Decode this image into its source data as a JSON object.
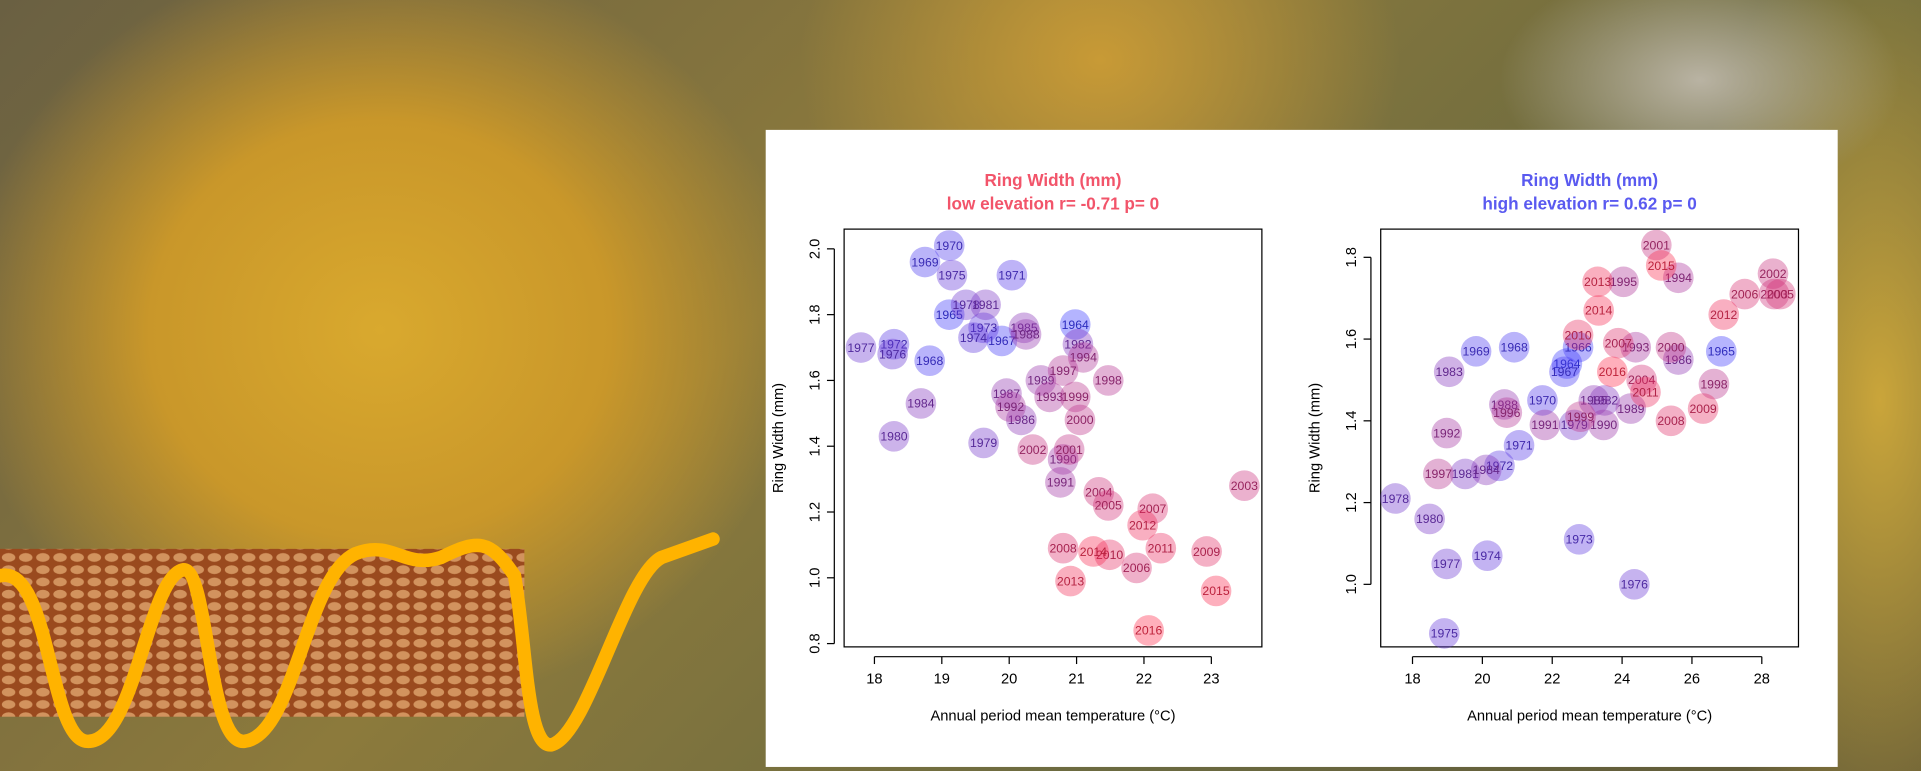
{
  "chart_data": [
    {
      "type": "scatter",
      "title": "Ring Width (mm)",
      "subtitle": "low elevation r= -0.71 p= 0",
      "title_color": "#f2546a",
      "xlabel": "Annual period mean temperature (°C)",
      "ylabel": "Ring Width (mm)",
      "xlim": [
        17.55,
        23.75
      ],
      "ylim": [
        0.79,
        2.06
      ],
      "xticks": [
        18,
        19,
        20,
        21,
        22,
        23
      ],
      "yticks": [
        0.8,
        {
          "value": 1,
          "label": "1.0"
        },
        1.2,
        1.4,
        1.6,
        1.8,
        {
          "value": 2,
          "label": "2.0"
        }
      ],
      "colors": [
        "#3a3aff",
        "#ff2d4d"
      ],
      "labels": [
        "1964",
        "1965",
        "1967",
        "1968",
        "1969",
        "1970",
        "1971",
        "1972",
        "1973",
        "1974",
        "1975",
        "1976",
        "1977",
        "1978",
        "1979",
        "1980",
        "1981",
        "1982",
        "1984",
        "1985",
        "1986",
        "1987",
        "1988",
        "1989",
        "1990",
        "1991",
        "1992",
        "1993",
        "1994",
        "1997",
        "1998",
        "1999",
        "2000",
        "2001",
        "2002",
        "2003",
        "2004",
        "2005",
        "2006",
        "2007",
        "2008",
        "2009",
        "2010",
        "2011",
        "2012",
        "2013",
        "2014",
        "2015",
        "2016"
      ],
      "x": [
        20.98,
        19.11,
        19.89,
        18.82,
        18.75,
        19.11,
        20.04,
        18.29,
        19.62,
        19.47,
        19.15,
        18.27,
        17.8,
        19.36,
        19.62,
        18.29,
        19.65,
        21.02,
        18.69,
        20.22,
        20.18,
        19.96,
        20.25,
        20.47,
        20.8,
        20.76,
        20.02,
        20.6,
        21.1,
        20.8,
        21.47,
        20.98,
        21.05,
        20.89,
        20.35,
        23.49,
        21.33,
        21.47,
        21.89,
        22.13,
        20.8,
        22.93,
        21.49,
        22.25,
        21.98,
        20.91,
        21.25,
        23.07,
        22.07
      ],
      "values": [
        1.77,
        1.8,
        1.72,
        1.66,
        1.96,
        2.01,
        1.92,
        1.71,
        1.76,
        1.73,
        1.92,
        1.68,
        1.7,
        1.83,
        1.41,
        1.43,
        1.83,
        1.71,
        1.53,
        1.76,
        1.48,
        1.56,
        1.74,
        1.6,
        1.36,
        1.29,
        1.52,
        1.55,
        1.67,
        1.63,
        1.6,
        1.55,
        1.48,
        1.39,
        1.39,
        1.28,
        1.26,
        1.22,
        1.03,
        1.21,
        1.09,
        1.08,
        1.07,
        1.09,
        1.16,
        0.99,
        1.08,
        0.96,
        0.84
      ]
    },
    {
      "type": "scatter",
      "title": "Ring Width (mm)",
      "subtitle": "high elevation r= 0.62 p= 0",
      "title_color": "#5a5af0",
      "xlabel": "Annual period mean temperature (°C)",
      "ylabel": "Ring Width (mm)",
      "xlim": [
        17.09,
        29.05
      ],
      "ylim": [
        0.847,
        1.869
      ],
      "xticks": [
        18,
        20,
        22,
        24,
        26,
        28
      ],
      "yticks": [
        {
          "value": 1,
          "label": "1.0"
        },
        1.2,
        1.4,
        1.6,
        1.8
      ],
      "colors": [
        "#3a3aff",
        "#ff2d4d"
      ],
      "labels": [
        "1964",
        "1965",
        "1966",
        "1967",
        "1968",
        "1969",
        "1970",
        "1971",
        "1972",
        "1973",
        "1974",
        "1975",
        "1976",
        "1977",
        "1978",
        "1979",
        "1980",
        "1981",
        "1982",
        "1983",
        "1984",
        "1985",
        "1986",
        "1988",
        "1989",
        "1990",
        "1991",
        "1992",
        "1993",
        "1994",
        "1995",
        "1996",
        "1997",
        "1998",
        "1999",
        "2000",
        "2001",
        "2002",
        "2003",
        "2004",
        "2005",
        "2006",
        "2007",
        "2008",
        "2009",
        "2010",
        "2011",
        "2012",
        "2013",
        "2014",
        "2015",
        "2016"
      ],
      "x": [
        22.42,
        26.84,
        22.74,
        22.35,
        20.91,
        19.82,
        21.72,
        21.05,
        20.49,
        22.77,
        20.14,
        18.91,
        24.35,
        18.98,
        17.51,
        22.63,
        18.49,
        19.51,
        23.5,
        19.05,
        20.11,
        23.19,
        25.61,
        20.63,
        24.25,
        23.47,
        21.79,
        18.98,
        24.39,
        25.61,
        24.04,
        20.7,
        18.74,
        26.63,
        22.81,
        25.4,
        24.98,
        28.32,
        28.35,
        24.56,
        28.53,
        27.51,
        23.89,
        25.4,
        26.32,
        22.74,
        24.67,
        26.91,
        23.3,
        23.33,
        25.12,
        23.72
      ],
      "values": [
        1.54,
        1.57,
        1.58,
        1.52,
        1.58,
        1.57,
        1.45,
        1.34,
        1.29,
        1.11,
        1.07,
        0.88,
        1.0,
        1.05,
        1.21,
        1.39,
        1.16,
        1.27,
        1.45,
        1.52,
        1.28,
        1.45,
        1.55,
        1.44,
        1.43,
        1.39,
        1.39,
        1.37,
        1.58,
        1.75,
        1.74,
        1.42,
        1.27,
        1.49,
        1.41,
        1.58,
        1.83,
        1.76,
        1.71,
        1.5,
        1.71,
        1.71,
        1.59,
        1.4,
        1.43,
        1.61,
        1.47,
        1.66,
        1.74,
        1.67,
        1.78,
        1.52
      ]
    }
  ]
}
